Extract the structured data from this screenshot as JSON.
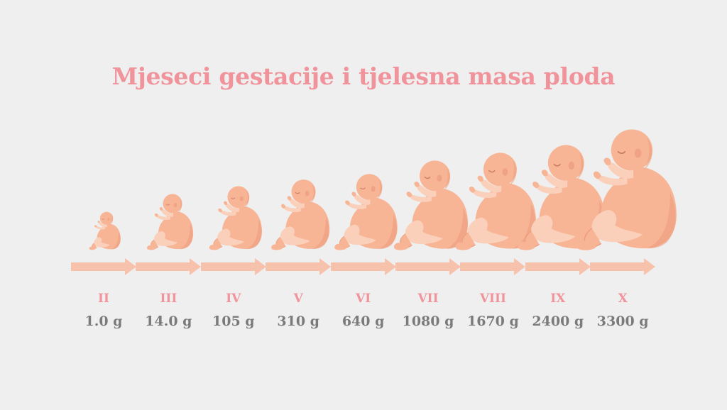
{
  "title": "Mjeseci gestacije i tjelesna masa ploda",
  "colors": {
    "background": "#efefef",
    "title": "#f0939b",
    "month_label": "#f0939b",
    "mass_label": "#7b7b7b",
    "arrow": "#f6c2ac",
    "skin": "#f7b596",
    "skin_shadow": "#ec9b7c",
    "skin_highlight": "#fbd0bb"
  },
  "stages": [
    {
      "month": "II",
      "mass": "1.0 g",
      "mass_value": 1.0,
      "icon": "fetus-illustration"
    },
    {
      "month": "III",
      "mass": "14.0 g",
      "mass_value": 14.0,
      "icon": "fetus-illustration"
    },
    {
      "month": "IV",
      "mass": "105 g",
      "mass_value": 105,
      "icon": "fetus-illustration"
    },
    {
      "month": "V",
      "mass": "310 g",
      "mass_value": 310,
      "icon": "fetus-illustration"
    },
    {
      "month": "VI",
      "mass": "640 g",
      "mass_value": 640,
      "icon": "fetus-illustration"
    },
    {
      "month": "VII",
      "mass": "1080 g",
      "mass_value": 1080,
      "icon": "fetus-illustration"
    },
    {
      "month": "VIII",
      "mass": "1670 g",
      "mass_value": 1670,
      "icon": "fetus-illustration"
    },
    {
      "month": "IX",
      "mass": "2400 g",
      "mass_value": 2400,
      "icon": "fetus-illustration"
    },
    {
      "month": "X",
      "mass": "3300 g",
      "mass_value": 3300,
      "icon": "fetus-illustration"
    }
  ]
}
